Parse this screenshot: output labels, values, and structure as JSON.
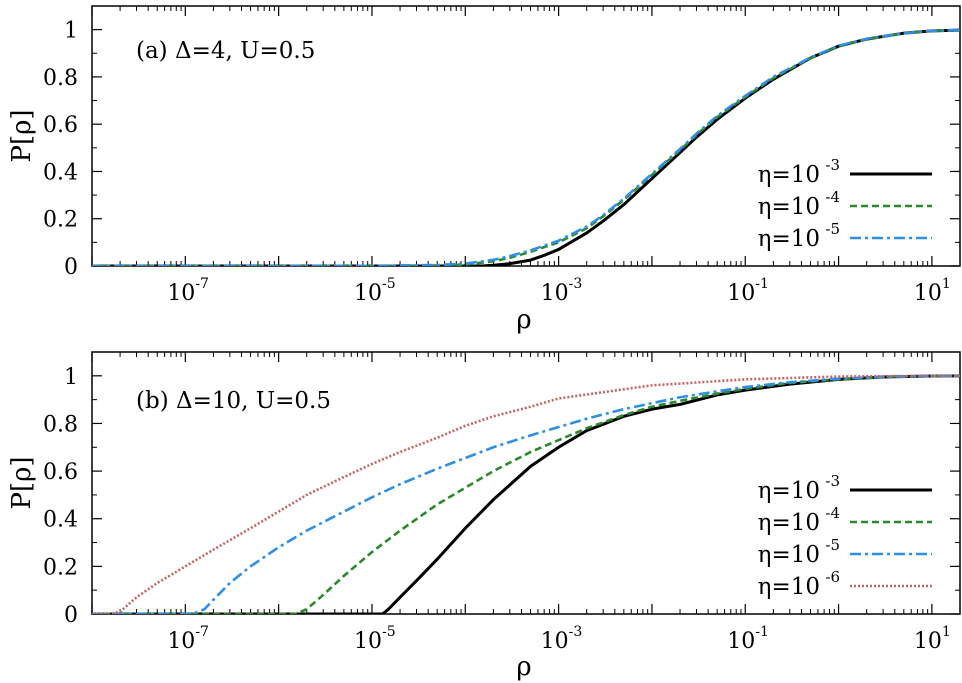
{
  "chart_data": [
    {
      "type": "line",
      "panel_label": "(a) Δ=4, U=0.5",
      "xlabel": "ρ",
      "ylabel": "P[ρ]",
      "x_scale": "log",
      "xlim": [
        1e-08,
        20
      ],
      "ylim": [
        0,
        1.1
      ],
      "x_ticks": [
        {
          "base": "10",
          "exp": "-7",
          "value": 1e-07
        },
        {
          "base": "10",
          "exp": "-5",
          "value": 1e-05
        },
        {
          "base": "10",
          "exp": "-3",
          "value": 0.001
        },
        {
          "base": "10",
          "exp": "-1",
          "value": 0.1
        },
        {
          "base": "10",
          "exp": "1",
          "value": 10
        }
      ],
      "y_ticks": [
        "0",
        "0.2",
        "0.4",
        "0.6",
        "0.8",
        "1"
      ],
      "legend_position": "right",
      "grid": false,
      "series": [
        {
          "name_base": "η=10",
          "name_exp": "-3",
          "color": "#000000",
          "dash": "solid",
          "x": [
            1e-08,
            1e-06,
            1e-05,
            0.0001,
            0.00015,
            0.0002,
            0.0003,
            0.0005,
            0.0007,
            0.001,
            0.002,
            0.003,
            0.005,
            0.01,
            0.02,
            0.03,
            0.05,
            0.1,
            0.2,
            0.5,
            1,
            2,
            5,
            10,
            20
          ],
          "y": [
            0,
            0,
            0,
            0,
            0,
            0.003,
            0.01,
            0.025,
            0.045,
            0.07,
            0.14,
            0.19,
            0.26,
            0.37,
            0.48,
            0.545,
            0.62,
            0.71,
            0.79,
            0.88,
            0.93,
            0.96,
            0.985,
            0.995,
            0.998
          ]
        },
        {
          "name_base": "η=10",
          "name_exp": "-4",
          "color": "#2a8a2a",
          "dash": "dashed",
          "x": [
            1e-08,
            1e-06,
            1e-05,
            5e-05,
            0.0001,
            0.0002,
            0.0003,
            0.0005,
            0.0007,
            0.001,
            0.002,
            0.003,
            0.005,
            0.01,
            0.02,
            0.03,
            0.05,
            0.1,
            0.2,
            0.5,
            1,
            2,
            5,
            10,
            20
          ],
          "y": [
            0,
            0,
            0,
            0.002,
            0.006,
            0.02,
            0.035,
            0.06,
            0.08,
            0.1,
            0.16,
            0.21,
            0.28,
            0.385,
            0.49,
            0.555,
            0.63,
            0.715,
            0.795,
            0.88,
            0.93,
            0.96,
            0.985,
            0.995,
            0.998
          ]
        },
        {
          "name_base": "η=10",
          "name_exp": "-5",
          "color": "#2f8fe8",
          "dash": "dashdot",
          "x": [
            1e-08,
            1e-06,
            1e-05,
            5e-05,
            0.0001,
            0.0002,
            0.0003,
            0.0005,
            0.0007,
            0.001,
            0.002,
            0.003,
            0.005,
            0.01,
            0.02,
            0.03,
            0.05,
            0.1,
            0.2,
            0.5,
            1,
            2,
            5,
            10,
            20
          ],
          "y": [
            0,
            0,
            0.001,
            0.004,
            0.01,
            0.026,
            0.042,
            0.066,
            0.086,
            0.107,
            0.167,
            0.215,
            0.285,
            0.39,
            0.495,
            0.56,
            0.635,
            0.72,
            0.8,
            0.882,
            0.932,
            0.961,
            0.985,
            0.995,
            0.998
          ]
        }
      ]
    },
    {
      "type": "line",
      "panel_label": "(b) Δ=10, U=0.5",
      "xlabel": "ρ",
      "ylabel": "P[ρ]",
      "x_scale": "log",
      "xlim": [
        1e-08,
        20
      ],
      "ylim": [
        0,
        1.1
      ],
      "x_ticks": [
        {
          "base": "10",
          "exp": "-7",
          "value": 1e-07
        },
        {
          "base": "10",
          "exp": "-5",
          "value": 1e-05
        },
        {
          "base": "10",
          "exp": "-3",
          "value": 0.001
        },
        {
          "base": "10",
          "exp": "-1",
          "value": 0.1
        },
        {
          "base": "10",
          "exp": "1",
          "value": 10
        }
      ],
      "y_ticks": [
        "0",
        "0.2",
        "0.4",
        "0.6",
        "0.8",
        "1"
      ],
      "legend_position": "right",
      "grid": false,
      "series": [
        {
          "name_base": "η=10",
          "name_exp": "-3",
          "color": "#000000",
          "dash": "solid",
          "x": [
            1e-08,
            1e-06,
            1e-05,
            1.3e-05,
            1.5e-05,
            2e-05,
            3e-05,
            5e-05,
            0.0001,
            0.0002,
            0.0005,
            0.001,
            0.002,
            0.005,
            0.01,
            0.02,
            0.05,
            0.1,
            0.3,
            1,
            3,
            10,
            20
          ],
          "y": [
            0,
            0,
            0,
            0,
            0.02,
            0.07,
            0.14,
            0.23,
            0.36,
            0.48,
            0.62,
            0.7,
            0.77,
            0.83,
            0.86,
            0.88,
            0.92,
            0.94,
            0.965,
            0.985,
            0.995,
            0.999,
            1.0
          ]
        },
        {
          "name_base": "η=10",
          "name_exp": "-4",
          "color": "#2a8a2a",
          "dash": "dashed",
          "x": [
            1e-08,
            1e-06,
            1.5e-06,
            2e-06,
            3e-06,
            5e-06,
            1e-05,
            2e-05,
            5e-05,
            0.0001,
            0.0002,
            0.0005,
            0.001,
            0.002,
            0.005,
            0.01,
            0.02,
            0.05,
            0.1,
            0.3,
            1,
            3,
            10,
            20
          ],
          "y": [
            0,
            0,
            0,
            0.02,
            0.08,
            0.16,
            0.26,
            0.35,
            0.46,
            0.53,
            0.6,
            0.68,
            0.73,
            0.78,
            0.835,
            0.87,
            0.895,
            0.925,
            0.945,
            0.97,
            0.985,
            0.995,
            0.999,
            1.0
          ]
        },
        {
          "name_base": "η=10",
          "name_exp": "-5",
          "color": "#2f8fe8",
          "dash": "dashdot",
          "x": [
            1e-08,
            1e-07,
            1.2e-07,
            1.6e-07,
            2e-07,
            3e-07,
            5e-07,
            1e-06,
            2e-06,
            5e-06,
            1e-05,
            2e-05,
            5e-05,
            0.0001,
            0.0002,
            0.0005,
            0.001,
            0.002,
            0.005,
            0.01,
            0.02,
            0.05,
            0.1,
            0.3,
            1,
            3,
            10,
            20
          ],
          "y": [
            0,
            0,
            0,
            0.02,
            0.06,
            0.13,
            0.2,
            0.28,
            0.35,
            0.43,
            0.49,
            0.545,
            0.61,
            0.655,
            0.7,
            0.75,
            0.785,
            0.82,
            0.86,
            0.885,
            0.91,
            0.935,
            0.953,
            0.973,
            0.988,
            0.996,
            0.999,
            1.0
          ]
        },
        {
          "name_base": "η=10",
          "name_exp": "-6",
          "color": "#c86464",
          "dash": "dotted",
          "x": [
            1e-08,
            1.6e-08,
            2e-08,
            3e-08,
            5e-08,
            1e-07,
            2e-07,
            5e-07,
            1e-06,
            2e-06,
            5e-06,
            1e-05,
            2e-05,
            5e-05,
            0.0001,
            0.0002,
            0.0005,
            0.001,
            0.01,
            0.1,
            1,
            10,
            20
          ],
          "y": [
            0,
            0,
            0.01,
            0.07,
            0.13,
            0.2,
            0.27,
            0.36,
            0.43,
            0.5,
            0.575,
            0.63,
            0.68,
            0.74,
            0.79,
            0.83,
            0.87,
            0.905,
            0.96,
            0.985,
            0.997,
            1.0,
            1.0
          ]
        }
      ]
    }
  ]
}
